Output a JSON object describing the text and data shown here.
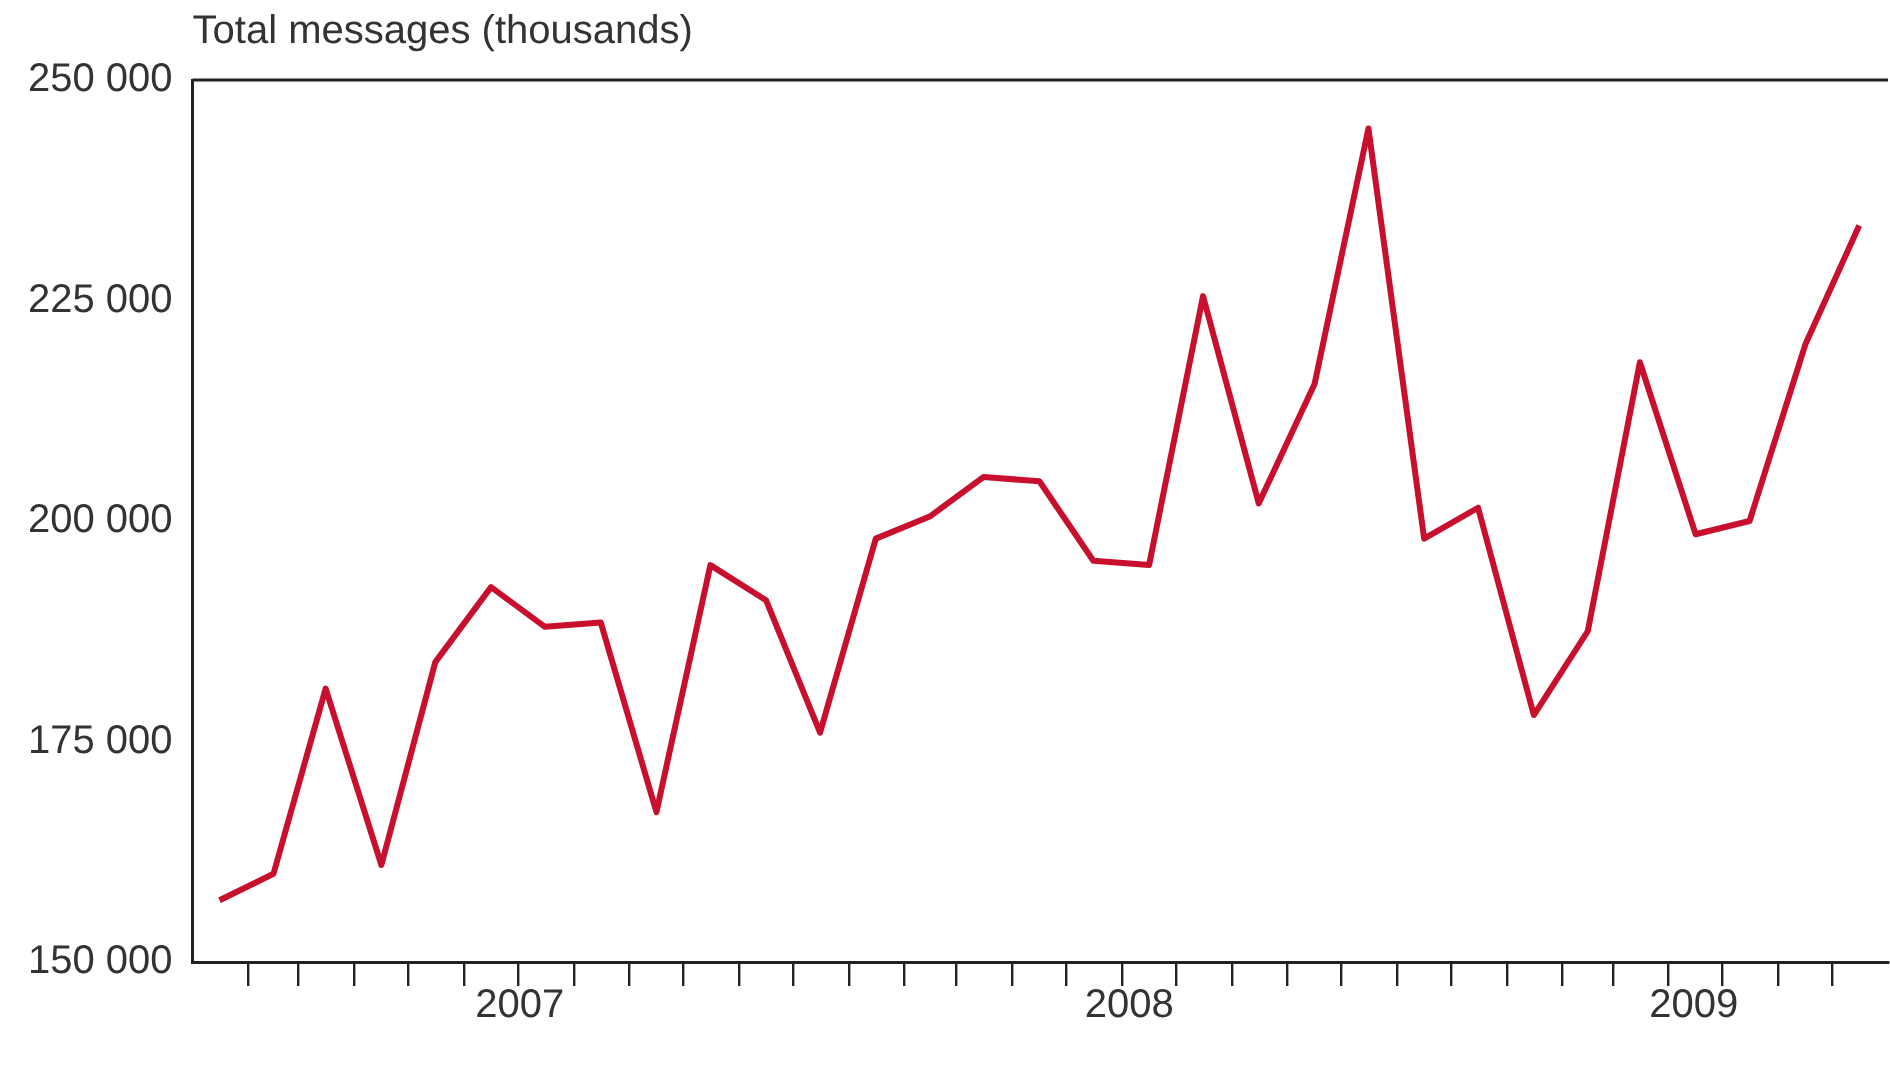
{
  "chart_data": {
    "type": "line",
    "ylabel": "Total messages (thousands)",
    "x": [
      "2007-01-16",
      "2007-02-15",
      "2007-03-16",
      "2007-04-16",
      "2007-05-16",
      "2007-06-16",
      "2007-07-16",
      "2007-08-16",
      "2007-09-16",
      "2007-10-16",
      "2007-11-16",
      "2007-12-16",
      "2008-01-16",
      "2008-02-15",
      "2008-03-16",
      "2008-04-16",
      "2008-05-16",
      "2008-06-16",
      "2008-07-16",
      "2008-08-16",
      "2008-09-16",
      "2008-10-16",
      "2008-11-16",
      "2008-12-16",
      "2009-01-16",
      "2009-02-15",
      "2009-03-16",
      "2009-04-16",
      "2009-05-16",
      "2009-06-16",
      "2009-07-16"
    ],
    "series": [
      {
        "color": "#c8102e",
        "values": [
          157000,
          160000,
          181000,
          161000,
          184000,
          192500,
          188000,
          188500,
          167000,
          195000,
          191000,
          176000,
          198000,
          200500,
          205000,
          204500,
          195500,
          195000,
          225500,
          202000,
          215500,
          244500,
          198000,
          201500,
          178000,
          187500,
          218000,
          198500,
          200000,
          220000,
          233500
        ]
      }
    ],
    "xlim": [
      "2007-01-01",
      "2009-08-01"
    ],
    "xticks": [
      {
        "value": "2007-02-01",
        "label": null
      },
      {
        "value": "2007-03-01",
        "label": null
      },
      {
        "value": "2007-04-01",
        "label": null
      },
      {
        "value": "2007-05-01",
        "label": null
      },
      {
        "value": "2007-06-01",
        "label": null
      },
      {
        "value": "2007-07-01",
        "label": null
      },
      {
        "value": "2007-08-01",
        "label": null
      },
      {
        "value": "2007-09-01",
        "label": null
      },
      {
        "value": "2007-10-01",
        "label": null
      },
      {
        "value": "2007-11-01",
        "label": null
      },
      {
        "value": "2007-12-01",
        "label": null
      },
      {
        "value": "2008-01-01",
        "label": null
      },
      {
        "value": "2008-02-01",
        "label": null
      },
      {
        "value": "2008-03-01",
        "label": null
      },
      {
        "value": "2008-04-01",
        "label": null
      },
      {
        "value": "2008-05-01",
        "label": null
      },
      {
        "value": "2008-06-01",
        "label": null
      },
      {
        "value": "2008-07-01",
        "label": null
      },
      {
        "value": "2008-08-01",
        "label": null
      },
      {
        "value": "2008-09-01",
        "label": null
      },
      {
        "value": "2008-10-01",
        "label": null
      },
      {
        "value": "2008-11-01",
        "label": null
      },
      {
        "value": "2008-12-01",
        "label": null
      },
      {
        "value": "2009-01-01",
        "label": null
      },
      {
        "value": "2009-02-01",
        "label": null
      },
      {
        "value": "2009-03-01",
        "label": null
      },
      {
        "value": "2009-04-01",
        "label": null
      },
      {
        "value": "2009-05-01",
        "label": null
      },
      {
        "value": "2009-06-01",
        "label": null
      },
      {
        "value": "2009-07-01",
        "label": null
      },
      {
        "value": "2007-07-02",
        "label": "2007"
      },
      {
        "value": "2008-06-05",
        "label": "2008"
      },
      {
        "value": "2009-04-15",
        "label": "2009"
      }
    ],
    "ylim": [
      150000,
      250000
    ],
    "yticks": [
      {
        "value": 150000,
        "label": "150 000"
      },
      {
        "value": 175000,
        "label": "175 000"
      },
      {
        "value": 200000,
        "label": "200 000"
      },
      {
        "value": 225000,
        "label": "225 000"
      },
      {
        "value": 250000,
        "label": "250 000"
      }
    ],
    "grid": false,
    "legend": false,
    "marker": "none",
    "line_style": "solid"
  }
}
